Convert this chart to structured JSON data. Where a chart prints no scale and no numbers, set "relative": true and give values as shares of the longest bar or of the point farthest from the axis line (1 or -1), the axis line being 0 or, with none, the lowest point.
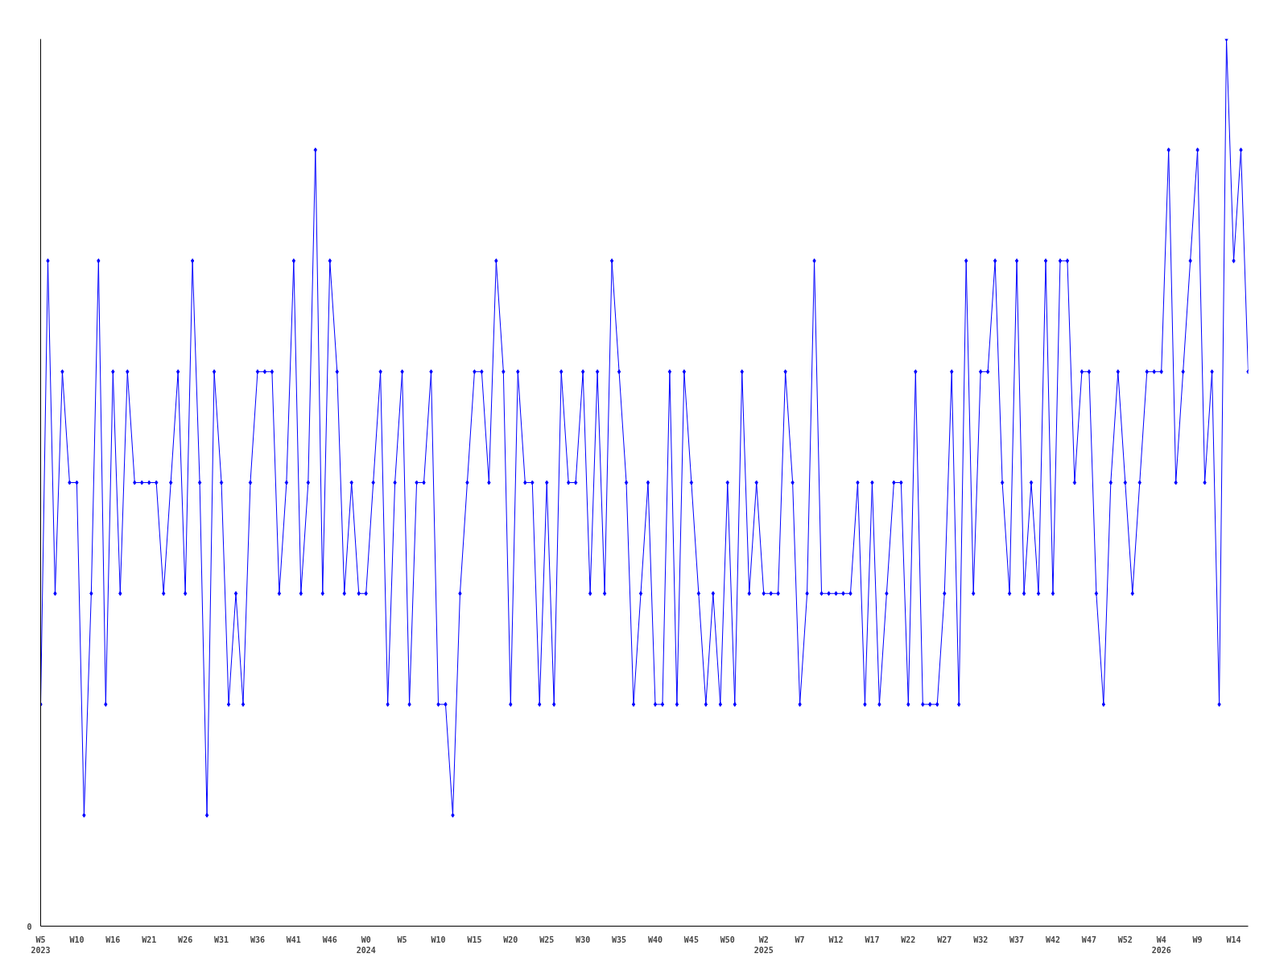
{
  "chart_data": {
    "type": "line",
    "relative": true,
    "marker": "diamond",
    "grid": false,
    "line_style": "solid",
    "annotations": [
      "0"
    ],
    "categories": [
      "W5\n2023",
      null,
      null,
      null,
      null,
      "W10",
      null,
      null,
      null,
      null,
      "W16",
      null,
      null,
      null,
      null,
      "W21",
      null,
      null,
      null,
      null,
      "W26",
      null,
      null,
      null,
      null,
      "W31",
      null,
      null,
      null,
      null,
      "W36",
      null,
      null,
      null,
      null,
      "W41",
      null,
      null,
      null,
      null,
      "W46",
      null,
      null,
      null,
      null,
      "W0\n2024",
      null,
      null,
      null,
      null,
      "W5",
      null,
      null,
      null,
      null,
      "W10",
      null,
      null,
      null,
      null,
      "W15",
      null,
      null,
      null,
      null,
      "W20",
      null,
      null,
      null,
      null,
      "W25",
      null,
      null,
      null,
      null,
      "W30",
      null,
      null,
      null,
      null,
      "W35",
      null,
      null,
      null,
      null,
      "W40",
      null,
      null,
      null,
      null,
      "W45",
      null,
      null,
      null,
      null,
      "W50",
      null,
      null,
      null,
      null,
      "W2\n2025",
      null,
      null,
      null,
      null,
      "W7",
      null,
      null,
      null,
      null,
      "W12",
      null,
      null,
      null,
      null,
      "W17",
      null,
      null,
      null,
      null,
      "W22",
      null,
      null,
      null,
      null,
      "W27",
      null,
      null,
      null,
      null,
      "W32",
      null,
      null,
      null,
      null,
      "W37",
      null,
      null,
      null,
      null,
      "W42",
      null,
      null,
      null,
      null,
      "W47",
      null,
      null,
      null,
      null,
      "W52",
      null,
      null,
      null,
      null,
      "W4\n2026",
      null,
      null,
      null,
      null,
      "W9",
      null,
      null,
      null,
      null,
      "W14",
      null,
      null
    ],
    "series": [
      {
        "color": "#0000ff",
        "values": [
          0.25,
          0.75,
          0.375,
          0.625,
          0.5,
          0.5,
          0.125,
          0.375,
          0.75,
          0.25,
          0.625,
          0.375,
          0.625,
          0.5,
          0.5,
          0.5,
          0.5,
          0.375,
          0.5,
          0.625,
          0.375,
          0.75,
          0.5,
          0.125,
          0.625,
          0.5,
          0.25,
          0.375,
          0.25,
          0.5,
          0.625,
          0.625,
          0.625,
          0.375,
          0.5,
          0.75,
          0.375,
          0.5,
          0.875,
          0.375,
          0.75,
          0.625,
          0.375,
          0.5,
          0.375,
          0.375,
          0.5,
          0.625,
          0.25,
          0.5,
          0.625,
          0.25,
          0.5,
          0.5,
          0.625,
          0.25,
          0.25,
          0.125,
          0.375,
          0.5,
          0.625,
          0.625,
          0.5,
          0.75,
          0.625,
          0.25,
          0.625,
          0.5,
          0.5,
          0.25,
          0.5,
          0.25,
          0.625,
          0.5,
          0.5,
          0.625,
          0.375,
          0.625,
          0.375,
          0.75,
          0.625,
          0.5,
          0.25,
          0.375,
          0.5,
          0.25,
          0.25,
          0.625,
          0.25,
          0.625,
          0.5,
          0.375,
          0.25,
          0.375,
          0.25,
          0.5,
          0.25,
          0.625,
          0.375,
          0.5,
          0.375,
          0.375,
          0.375,
          0.625,
          0.5,
          0.25,
          0.375,
          0.75,
          0.375,
          0.375,
          0.375,
          0.375,
          0.375,
          0.5,
          0.25,
          0.5,
          0.25,
          0.375,
          0.5,
          0.5,
          0.25,
          0.625,
          0.25,
          0.25,
          0.25,
          0.375,
          0.625,
          0.25,
          0.75,
          0.375,
          0.625,
          0.625,
          0.75,
          0.5,
          0.375,
          0.75,
          0.375,
          0.5,
          0.375,
          0.75,
          0.375,
          0.75,
          0.75,
          0.5,
          0.625,
          0.625,
          0.375,
          0.25,
          0.5,
          0.625,
          0.5,
          0.375,
          0.5,
          0.625,
          0.625,
          0.625,
          0.875,
          0.5,
          0.625,
          0.75,
          0.875,
          0.5,
          0.625,
          0.25,
          1,
          0.75,
          0.875,
          0.625
        ]
      }
    ]
  }
}
